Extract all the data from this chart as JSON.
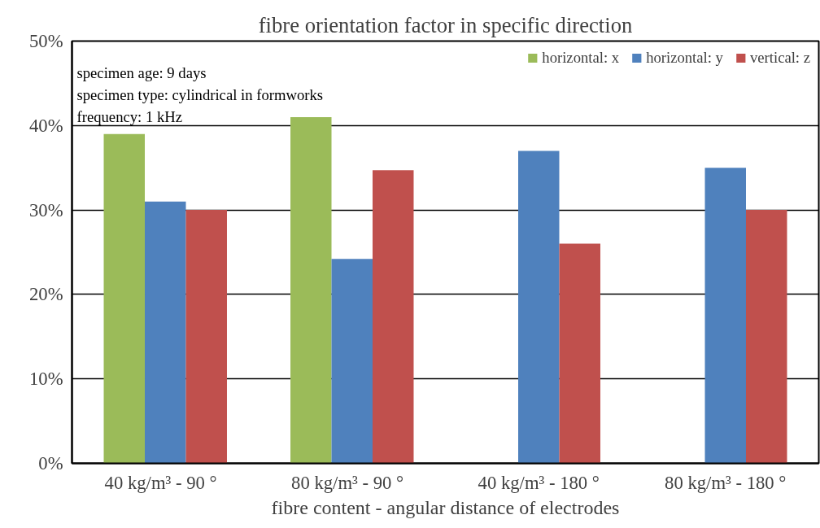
{
  "chart_data": {
    "type": "bar",
    "title": "fibre orientation factor in specific direction",
    "xlabel": "fibre content - angular distance of electrodes",
    "categories": [
      "40 kg/m³ -   90 °",
      "80 kg/m³ -   90 °",
      "40 kg/m³ - 180 °",
      "80 kg/m³ - 180 °"
    ],
    "series": [
      {
        "name": "horizontal: x",
        "color": "#9bbb59",
        "values": [
          39,
          41,
          null,
          null
        ]
      },
      {
        "name": "horizontal: y",
        "color": "#4f81bd",
        "values": [
          31,
          24.2,
          37,
          35
        ]
      },
      {
        "name": "vertical: z",
        "color": "#c0504d",
        "values": [
          30,
          34.7,
          26,
          30
        ]
      }
    ],
    "ylim": [
      0,
      50
    ],
    "yticks": [
      {
        "value": 0,
        "label": "0%"
      },
      {
        "value": 10,
        "label": "10%"
      },
      {
        "value": 20,
        "label": "20%"
      },
      {
        "value": 30,
        "label": "30%"
      },
      {
        "value": 40,
        "label": "40%"
      },
      {
        "value": 50,
        "label": "50%"
      }
    ],
    "grid": "y",
    "legend": "top right",
    "annotations": [
      "specimen age: 9 days",
      "specimen type: cylindrical in formworks",
      "frequency: 1 kHz"
    ]
  }
}
